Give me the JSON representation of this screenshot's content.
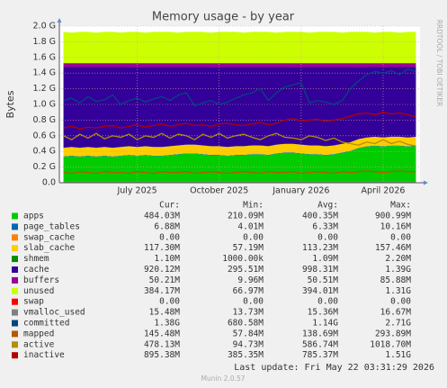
{
  "chart_data": {
    "type": "stacked-area",
    "title": "Memory usage - by year",
    "y_label": "Bytes",
    "side_note": "RRDTOOL / TOBI OETIKER",
    "footer_update": "Last update: Fri May 22 03:31:29 2026",
    "footer_version": "Munin 2.0.57",
    "legend_headers": [
      "Cur:",
      "Min:",
      "Avg:",
      "Max:"
    ],
    "grid": true,
    "categories": [
      null,
      null,
      null,
      null,
      null,
      null,
      null,
      null,
      null,
      "July 2025",
      null,
      null,
      null,
      null,
      null,
      null,
      null,
      null,
      null,
      "October 2025",
      null,
      null,
      null,
      null,
      null,
      null,
      null,
      null,
      null,
      "January 2026",
      null,
      null,
      null,
      null,
      null,
      null,
      null,
      null,
      null,
      "April 2026",
      null,
      null,
      null,
      null
    ],
    "ylim": [
      0,
      2.0
    ],
    "yticks": [
      {
        "value": 0,
        "label": "0.0"
      },
      {
        "value": 0.2,
        "label": "0.2 G"
      },
      {
        "value": 0.4,
        "label": "0.4 G"
      },
      {
        "value": 0.6,
        "label": "0.6 G"
      },
      {
        "value": 0.8,
        "label": "0.8 G"
      },
      {
        "value": 1.0,
        "label": "1.0 G"
      },
      {
        "value": 1.2,
        "label": "1.2 G"
      },
      {
        "value": 1.4,
        "label": "1.4 G"
      },
      {
        "value": 1.6,
        "label": "1.6 G"
      },
      {
        "value": 1.8,
        "label": "1.8 G"
      },
      {
        "value": 2.0,
        "label": "2.0 G"
      }
    ],
    "series": [
      {
        "name": "apps",
        "color": "#00cc00",
        "stack": true,
        "cur": "484.03M",
        "min": "210.09M",
        "avg": "400.35M",
        "max": "900.99M",
        "values": [
          0.33,
          0.34,
          0.33,
          0.34,
          0.33,
          0.34,
          0.33,
          0.34,
          0.35,
          0.34,
          0.35,
          0.34,
          0.34,
          0.35,
          0.36,
          0.37,
          0.37,
          0.36,
          0.35,
          0.35,
          0.34,
          0.35,
          0.35,
          0.36,
          0.36,
          0.35,
          0.37,
          0.38,
          0.38,
          0.37,
          0.36,
          0.36,
          0.35,
          0.36,
          0.38,
          0.4,
          0.44,
          0.46,
          0.47,
          0.46,
          0.47,
          0.47,
          0.46,
          0.47
        ]
      },
      {
        "name": "page_tables",
        "color": "#0066b3",
        "stack": true,
        "cur": "6.88M",
        "min": "4.01M",
        "avg": "6.33M",
        "max": "10.16M",
        "values": [
          0.006,
          0.006,
          0.006,
          0.006,
          0.006,
          0.006,
          0.006,
          0.006,
          0.006,
          0.006,
          0.006,
          0.006,
          0.006,
          0.006,
          0.006,
          0.006,
          0.006,
          0.006,
          0.006,
          0.006,
          0.006,
          0.006,
          0.006,
          0.006,
          0.006,
          0.006,
          0.006,
          0.006,
          0.006,
          0.006,
          0.006,
          0.006,
          0.006,
          0.006,
          0.006,
          0.006,
          0.006,
          0.006,
          0.006,
          0.006,
          0.006,
          0.006,
          0.006,
          0.006
        ]
      },
      {
        "name": "swap_cache",
        "color": "#ff8000",
        "stack": true,
        "cur": "0.00",
        "min": "0.00",
        "avg": "0.00",
        "max": "0.00",
        "values": [
          0,
          0,
          0,
          0,
          0,
          0,
          0,
          0,
          0,
          0,
          0,
          0,
          0,
          0,
          0,
          0,
          0,
          0,
          0,
          0,
          0,
          0,
          0,
          0,
          0,
          0,
          0,
          0,
          0,
          0,
          0,
          0,
          0,
          0,
          0,
          0,
          0,
          0,
          0,
          0,
          0,
          0,
          0,
          0
        ]
      },
      {
        "name": "slab_cache",
        "color": "#ffcc00",
        "stack": true,
        "cur": "117.30M",
        "min": "57.19M",
        "avg": "113.23M",
        "max": "157.46M",
        "values": [
          0.11,
          0.11,
          0.11,
          0.11,
          0.11,
          0.11,
          0.11,
          0.11,
          0.11,
          0.11,
          0.11,
          0.11,
          0.11,
          0.11,
          0.11,
          0.11,
          0.11,
          0.11,
          0.11,
          0.11,
          0.11,
          0.11,
          0.11,
          0.11,
          0.11,
          0.11,
          0.11,
          0.11,
          0.11,
          0.11,
          0.11,
          0.11,
          0.11,
          0.11,
          0.11,
          0.11,
          0.11,
          0.11,
          0.11,
          0.11,
          0.11,
          0.11,
          0.11,
          0.11
        ]
      },
      {
        "name": "shmem",
        "color": "#008f00",
        "stack": true,
        "cur": "1.10M",
        "min": "1000.00k",
        "avg": "1.09M",
        "max": "2.20M",
        "values": [
          0.001,
          0.001,
          0.001,
          0.001,
          0.001,
          0.001,
          0.001,
          0.001,
          0.001,
          0.001,
          0.001,
          0.001,
          0.001,
          0.001,
          0.001,
          0.001,
          0.001,
          0.001,
          0.001,
          0.001,
          0.001,
          0.001,
          0.001,
          0.001,
          0.001,
          0.001,
          0.001,
          0.001,
          0.001,
          0.001,
          0.001,
          0.001,
          0.001,
          0.001,
          0.001,
          0.001,
          0.001,
          0.001,
          0.001,
          0.001,
          0.001,
          0.001,
          0.001,
          0.001
        ]
      },
      {
        "name": "cache",
        "color": "#330099",
        "stack": true,
        "cur": "920.12M",
        "min": "295.51M",
        "avg": "998.31M",
        "max": "1.39G",
        "values": [
          1.03,
          1.02,
          1.03,
          1.02,
          1.03,
          1.02,
          1.03,
          1.02,
          1.01,
          1.02,
          1.01,
          1.02,
          1.02,
          1.01,
          1.0,
          0.99,
          0.99,
          1.0,
          1.01,
          1.01,
          1.02,
          1.01,
          1.01,
          1.0,
          1.0,
          1.01,
          0.99,
          0.98,
          0.98,
          0.99,
          1.0,
          1.0,
          1.01,
          1.0,
          0.98,
          0.96,
          0.92,
          0.9,
          0.89,
          0.9,
          0.89,
          0.89,
          0.9,
          0.89
        ]
      },
      {
        "name": "buffers",
        "color": "#990099",
        "stack": true,
        "cur": "50.21M",
        "min": "9.96M",
        "avg": "50.51M",
        "max": "85.88M",
        "values": [
          0.05,
          0.05,
          0.05,
          0.05,
          0.05,
          0.05,
          0.05,
          0.05,
          0.05,
          0.05,
          0.05,
          0.05,
          0.05,
          0.05,
          0.05,
          0.05,
          0.05,
          0.05,
          0.05,
          0.05,
          0.05,
          0.05,
          0.05,
          0.05,
          0.05,
          0.05,
          0.05,
          0.05,
          0.05,
          0.05,
          0.05,
          0.05,
          0.05,
          0.05,
          0.05,
          0.05,
          0.05,
          0.05,
          0.05,
          0.05,
          0.05,
          0.05,
          0.05,
          0.05
        ]
      },
      {
        "name": "unused",
        "color": "#ccff00",
        "stack": true,
        "cur": "384.17M",
        "min": "66.97M",
        "avg": "394.01M",
        "max": "1.31G",
        "values": [
          0.4,
          0.39,
          0.4,
          0.4,
          0.39,
          0.4,
          0.4,
          0.39,
          0.4,
          0.4,
          0.39,
          0.4,
          0.4,
          0.4,
          0.39,
          0.4,
          0.4,
          0.4,
          0.39,
          0.4,
          0.4,
          0.4,
          0.39,
          0.4,
          0.4,
          0.4,
          0.39,
          0.4,
          0.4,
          0.4,
          0.39,
          0.4,
          0.4,
          0.4,
          0.39,
          0.4,
          0.4,
          0.4,
          0.39,
          0.4,
          0.4,
          0.39,
          0.4,
          0.4
        ]
      },
      {
        "name": "swap",
        "color": "#ff0000",
        "stack": true,
        "cur": "0.00",
        "min": "0.00",
        "avg": "0.00",
        "max": "0.00",
        "values": [
          0,
          0,
          0,
          0,
          0,
          0,
          0,
          0,
          0,
          0,
          0,
          0,
          0,
          0,
          0,
          0,
          0,
          0,
          0,
          0,
          0,
          0,
          0,
          0,
          0,
          0,
          0,
          0,
          0,
          0,
          0,
          0,
          0,
          0,
          0,
          0,
          0,
          0,
          0,
          0,
          0,
          0,
          0,
          0
        ]
      },
      {
        "name": "vmalloc_used",
        "color": "#808080",
        "stack": false,
        "cur": "15.48M",
        "min": "13.73M",
        "avg": "15.36M",
        "max": "16.67M",
        "values": [
          0.015,
          0.015,
          0.015,
          0.015,
          0.015,
          0.015,
          0.015,
          0.015,
          0.015,
          0.015,
          0.015,
          0.015,
          0.015,
          0.015,
          0.015,
          0.015,
          0.015,
          0.015,
          0.015,
          0.015,
          0.015,
          0.015,
          0.015,
          0.015,
          0.015,
          0.015,
          0.015,
          0.015,
          0.015,
          0.015,
          0.015,
          0.015,
          0.015,
          0.015,
          0.015,
          0.015,
          0.015,
          0.015,
          0.015,
          0.015,
          0.015,
          0.015,
          0.015,
          0.015
        ]
      },
      {
        "name": "committed",
        "color": "#00487d",
        "stack": false,
        "cur": "1.38G",
        "min": "680.58M",
        "avg": "1.14G",
        "max": "2.71G",
        "values": [
          1.05,
          1.08,
          1.02,
          1.1,
          1.04,
          1.06,
          1.12,
          1.0,
          1.05,
          1.08,
          1.03,
          1.07,
          1.1,
          1.05,
          1.12,
          1.15,
          0.98,
          1.02,
          1.05,
          1.0,
          1.03,
          1.08,
          1.12,
          1.15,
          1.2,
          1.05,
          1.15,
          1.22,
          1.25,
          1.28,
          1.02,
          1.05,
          1.03,
          1.0,
          1.05,
          1.2,
          1.3,
          1.38,
          1.42,
          1.4,
          1.43,
          1.38,
          1.45,
          1.42
        ]
      },
      {
        "name": "mapped",
        "color": "#b35a00",
        "stack": false,
        "cur": "145.48M",
        "min": "57.84M",
        "avg": "138.69M",
        "max": "293.89M",
        "values": [
          0.13,
          0.12,
          0.14,
          0.13,
          0.12,
          0.14,
          0.13,
          0.13,
          0.12,
          0.14,
          0.13,
          0.12,
          0.14,
          0.13,
          0.13,
          0.14,
          0.12,
          0.13,
          0.14,
          0.13,
          0.12,
          0.13,
          0.14,
          0.13,
          0.12,
          0.14,
          0.13,
          0.13,
          0.14,
          0.12,
          0.13,
          0.14,
          0.13,
          0.12,
          0.14,
          0.13,
          0.14,
          0.15,
          0.14,
          0.13,
          0.14,
          0.15,
          0.14,
          0.14
        ]
      },
      {
        "name": "active",
        "color": "#b38f00",
        "stack": false,
        "cur": "478.13M",
        "min": "94.73M",
        "avg": "586.74M",
        "max": "1018.70M",
        "values": [
          0.6,
          0.55,
          0.62,
          0.57,
          0.63,
          0.56,
          0.6,
          0.58,
          0.62,
          0.55,
          0.6,
          0.58,
          0.63,
          0.57,
          0.62,
          0.6,
          0.55,
          0.62,
          0.58,
          0.63,
          0.57,
          0.6,
          0.62,
          0.58,
          0.55,
          0.6,
          0.63,
          0.58,
          0.57,
          0.55,
          0.6,
          0.58,
          0.54,
          0.57,
          0.52,
          0.5,
          0.48,
          0.52,
          0.5,
          0.55,
          0.5,
          0.53,
          0.49,
          0.47
        ]
      },
      {
        "name": "inactive",
        "color": "#b30000",
        "stack": false,
        "cur": "895.38M",
        "min": "385.35M",
        "avg": "785.37M",
        "max": "1.51G",
        "values": [
          0.7,
          0.72,
          0.69,
          0.71,
          0.7,
          0.72,
          0.73,
          0.7,
          0.72,
          0.74,
          0.71,
          0.73,
          0.75,
          0.72,
          0.74,
          0.76,
          0.73,
          0.74,
          0.72,
          0.75,
          0.76,
          0.74,
          0.73,
          0.75,
          0.77,
          0.74,
          0.76,
          0.8,
          0.82,
          0.79,
          0.8,
          0.81,
          0.78,
          0.8,
          0.82,
          0.85,
          0.88,
          0.89,
          0.87,
          0.9,
          0.88,
          0.89,
          0.87,
          0.84
        ]
      }
    ]
  }
}
